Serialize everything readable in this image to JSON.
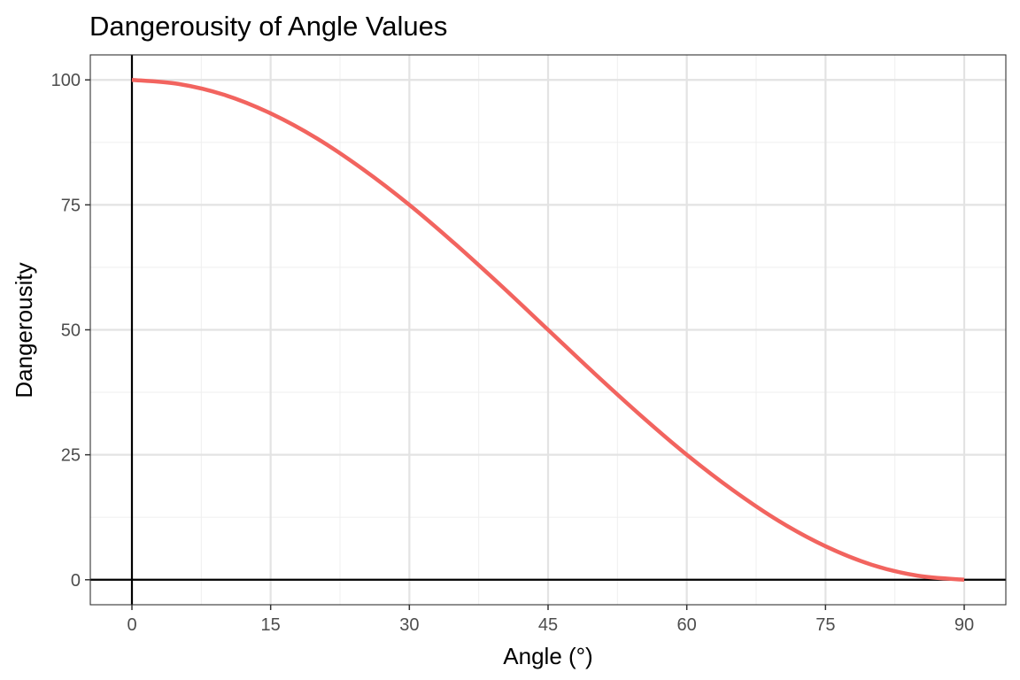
{
  "chart_data": {
    "type": "line",
    "title": "Dangerousity of Angle Values",
    "xlabel": "Angle (°)",
    "ylabel": "Dangerousity",
    "xlim": [
      -4.5,
      94.5
    ],
    "ylim": [
      -5,
      105
    ],
    "x_ticks": [
      0,
      15,
      30,
      45,
      60,
      75,
      90
    ],
    "x_tick_labels": [
      "0",
      "15",
      "30",
      "45",
      "60",
      "75",
      "90"
    ],
    "x_minor_ticks": [
      7.5,
      22.5,
      37.5,
      52.5,
      67.5,
      82.5
    ],
    "y_ticks": [
      0,
      25,
      50,
      75,
      100
    ],
    "y_tick_labels": [
      "0",
      "25",
      "50",
      "75",
      "100"
    ],
    "y_minor_ticks": [
      12.5,
      37.5,
      62.5,
      87.5
    ],
    "reference_lines": {
      "vertical_x": 0,
      "horizontal_y": 0
    },
    "grid": true,
    "legend": "none",
    "series": [
      {
        "color": "#F2645F",
        "x": [
          0,
          5,
          10,
          15,
          20,
          25,
          30,
          35,
          40,
          45,
          50,
          55,
          60,
          65,
          70,
          75,
          80,
          85,
          90
        ],
        "y": [
          100,
          99.2,
          97.0,
          93.3,
          88.3,
          82.1,
          75.0,
          67.1,
          58.7,
          50.0,
          41.3,
          32.9,
          25.0,
          17.9,
          11.7,
          6.7,
          3.0,
          0.8,
          0
        ]
      }
    ]
  }
}
